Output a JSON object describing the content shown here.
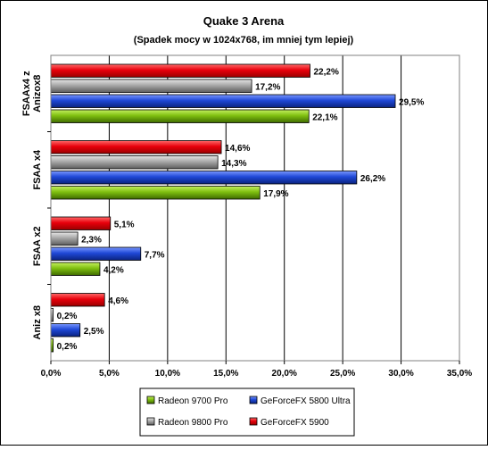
{
  "chart_data": {
    "type": "bar",
    "orientation": "horizontal",
    "title": "Quake 3 Arena",
    "subtitle": "(Spadek mocy w 1024x768, im mniej tym lepiej)",
    "xlabel": "",
    "ylabel": "",
    "xlim": [
      0,
      35
    ],
    "x_ticks": [
      "0,0%",
      "5,0%",
      "10,0%",
      "15,0%",
      "20,0%",
      "25,0%",
      "30,0%",
      "35,0%"
    ],
    "x_tick_values": [
      0,
      5,
      10,
      15,
      20,
      25,
      30,
      35
    ],
    "grid": "vertical",
    "legend_position": "bottom",
    "categories": [
      [
        "FSAAx4 z",
        "Anizox8"
      ],
      [
        "FSAA x4"
      ],
      [
        "FSAA x2"
      ],
      [
        "Aniz x8"
      ]
    ],
    "series": [
      {
        "name": "GeForceFX 5900",
        "color": "#e8000b",
        "values": [
          22.2,
          14.6,
          5.1,
          4.6
        ],
        "labels": [
          "22,2%",
          "14,6%",
          "5,1%",
          "4,6%"
        ]
      },
      {
        "name": "Radeon 9800 Pro",
        "color": "#a8a8a8",
        "values": [
          17.2,
          14.3,
          2.3,
          0.2
        ],
        "labels": [
          "17,2%",
          "14,3%",
          "2,3%",
          "0,2%"
        ]
      },
      {
        "name": "GeForceFX 5800 Ultra",
        "color": "#1f48d6",
        "values": [
          29.5,
          26.2,
          7.7,
          2.5
        ],
        "labels": [
          "29,5%",
          "26,2%",
          "7,7%",
          "2,5%"
        ]
      },
      {
        "name": "Radeon 9700 Pro",
        "color": "#7fbf10",
        "values": [
          22.1,
          17.9,
          4.2,
          0.2
        ],
        "labels": [
          "22,1%",
          "17,9%",
          "4,2%",
          "0,2%"
        ]
      }
    ],
    "legend": [
      {
        "name": "Radeon 9700 Pro",
        "color": "#7fbf10"
      },
      {
        "name": "GeForceFX 5800 Ultra",
        "color": "#1f48d6"
      },
      {
        "name": "Radeon 9800 Pro",
        "color": "#a8a8a8"
      },
      {
        "name": "GeForceFX 5900",
        "color": "#e8000b"
      }
    ]
  }
}
